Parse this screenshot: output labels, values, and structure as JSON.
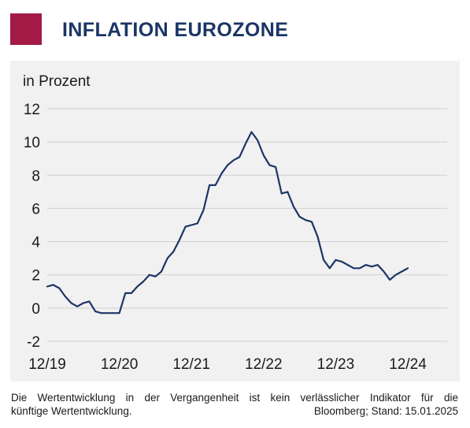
{
  "header": {
    "title": "INFLATION EUROZONE",
    "brand_color": "#a21a45",
    "title_color": "#1c3566"
  },
  "chart_data": {
    "type": "line",
    "title": "INFLATION EUROZONE",
    "ylabel": "in Prozent",
    "xlabel": "",
    "ylim": [
      -2,
      12
    ],
    "yticks": [
      -2,
      0,
      2,
      4,
      6,
      8,
      10,
      12
    ],
    "xlim": [
      "2019-12",
      "2024-12"
    ],
    "xticks": [
      {
        "date": "2019-12",
        "label": "12/19"
      },
      {
        "date": "2020-12",
        "label": "12/20"
      },
      {
        "date": "2021-12",
        "label": "12/21"
      },
      {
        "date": "2022-12",
        "label": "12/22"
      },
      {
        "date": "2023-12",
        "label": "12/23"
      },
      {
        "date": "2024-12",
        "label": "12/24"
      }
    ],
    "grid": "horizontal",
    "legend": "none",
    "line_color": "#1c3566",
    "series": [
      {
        "x": [
          "2019-12",
          "2020-01",
          "2020-02",
          "2020-03",
          "2020-04",
          "2020-05",
          "2020-06",
          "2020-07",
          "2020-08",
          "2020-09",
          "2020-10",
          "2020-11",
          "2020-12",
          "2021-01",
          "2021-02",
          "2021-03",
          "2021-04",
          "2021-05",
          "2021-06",
          "2021-07",
          "2021-08",
          "2021-09",
          "2021-10",
          "2021-11",
          "2021-12",
          "2022-01",
          "2022-02",
          "2022-03",
          "2022-04",
          "2022-05",
          "2022-06",
          "2022-07",
          "2022-08",
          "2022-09",
          "2022-10",
          "2022-11",
          "2022-12",
          "2023-01",
          "2023-02",
          "2023-03",
          "2023-04",
          "2023-05",
          "2023-06",
          "2023-07",
          "2023-08",
          "2023-09",
          "2023-10",
          "2023-11",
          "2023-12",
          "2024-01",
          "2024-02",
          "2024-03",
          "2024-04",
          "2024-05",
          "2024-06",
          "2024-07",
          "2024-08",
          "2024-09",
          "2024-10",
          "2024-11",
          "2024-12"
        ],
        "values": [
          1.3,
          1.4,
          1.2,
          0.7,
          0.3,
          0.1,
          0.3,
          0.4,
          -0.2,
          -0.3,
          -0.3,
          -0.3,
          -0.3,
          0.9,
          0.9,
          1.3,
          1.6,
          2.0,
          1.9,
          2.2,
          3.0,
          3.4,
          4.1,
          4.9,
          5.0,
          5.1,
          5.9,
          7.4,
          7.4,
          8.1,
          8.6,
          8.9,
          9.1,
          9.9,
          10.6,
          10.1,
          9.2,
          8.6,
          8.5,
          6.9,
          7.0,
          6.1,
          5.5,
          5.3,
          5.2,
          4.3,
          2.9,
          2.4,
          2.9,
          2.8,
          2.6,
          2.4,
          2.4,
          2.6,
          2.5,
          2.6,
          2.2,
          1.7,
          2.0,
          2.2,
          2.4
        ]
      }
    ]
  },
  "footnote": {
    "line1": "Die Wertentwicklung in der Vergangenheit ist kein verlässlicher Indikator für die",
    "line2_left": "künftige Wertentwicklung.",
    "line2_right": "Bloomberg; Stand: 15.01.2025"
  }
}
